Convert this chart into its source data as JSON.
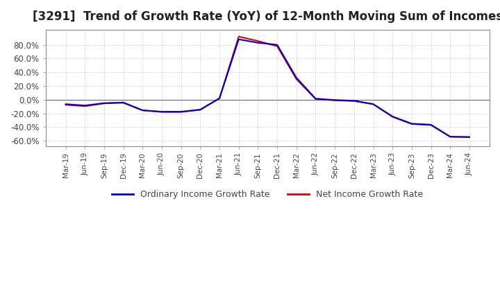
{
  "title": "[3291]  Trend of Growth Rate (YoY) of 12-Month Moving Sum of Incomes",
  "title_fontsize": 12,
  "ylim": [
    -0.68,
    1.02
  ],
  "yticks": [
    -0.6,
    -0.4,
    -0.2,
    0.0,
    0.2,
    0.4,
    0.6,
    0.8
  ],
  "ytick_labels": [
    "-60.0%",
    "-40.0%",
    "-20.0%",
    "0.0%",
    "20.0%",
    "40.0%",
    "60.0%",
    "80.0%"
  ],
  "background_color": "#ffffff",
  "plot_bg_color": "#ffffff",
  "grid_color": "#aaaaaa",
  "ordinary_color": "#0000cc",
  "net_color": "#dd0000",
  "legend_ordinary": "Ordinary Income Growth Rate",
  "legend_net": "Net Income Growth Rate",
  "dates": [
    "Mar-19",
    "Jun-19",
    "Sep-19",
    "Dec-19",
    "Mar-20",
    "Jun-20",
    "Sep-20",
    "Dec-20",
    "Mar-21",
    "Jun-21",
    "Sep-21",
    "Dec-21",
    "Mar-22",
    "Jun-22",
    "Sep-22",
    "Dec-22",
    "Mar-23",
    "Jun-23",
    "Sep-23",
    "Dec-23",
    "Mar-24",
    "Jun-24"
  ],
  "ordinary_income": [
    -0.065,
    -0.085,
    -0.05,
    -0.045,
    -0.155,
    -0.175,
    -0.175,
    -0.145,
    0.02,
    0.88,
    0.83,
    0.8,
    0.32,
    0.015,
    -0.005,
    -0.015,
    -0.065,
    -0.245,
    -0.35,
    -0.365,
    -0.54,
    -0.545
  ],
  "net_income": [
    -0.075,
    -0.095,
    -0.055,
    -0.04,
    -0.155,
    -0.18,
    -0.18,
    -0.148,
    0.02,
    0.92,
    0.855,
    0.78,
    0.3,
    0.01,
    -0.01,
    -0.02,
    -0.065,
    -0.25,
    -0.355,
    -0.37,
    -0.54,
    -0.545
  ]
}
